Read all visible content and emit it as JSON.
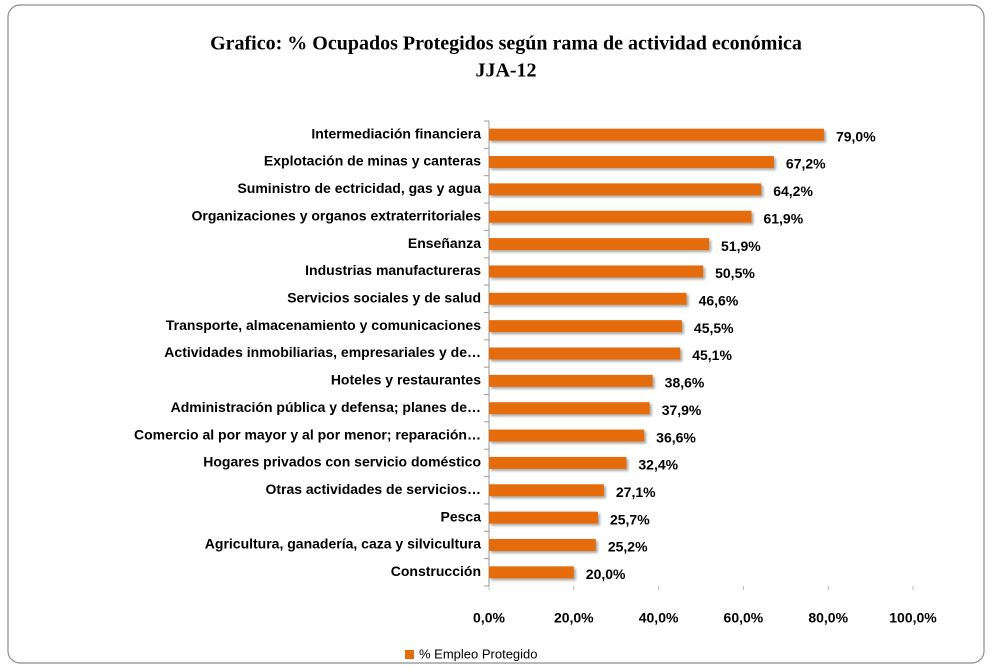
{
  "chart_data": {
    "type": "barh",
    "title": [
      "Grafico: % Ocupados Protegidos según rama de actividad económica",
      "JJA-12"
    ],
    "categories": [
      "Intermediación financiera",
      "Explotación de minas y canteras",
      "Suministro de ectricidad, gas y agua",
      "Organizaciones y organos extraterritoriales",
      "Enseñanza",
      "Industrias manufactureras",
      "Servicios sociales y de salud",
      "Transporte, almacenamiento y comunicaciones",
      "Actividades inmobiliarias, empresariales y de…",
      "Hoteles y restaurantes",
      "Administración pública y defensa; planes de…",
      "Comercio al por mayor y al por menor; reparación…",
      "Hogares privados con servicio doméstico",
      "Otras actividades de servicios…",
      "Pesca",
      "Agricultura, ganadería, caza y silvicultura",
      "Construcción"
    ],
    "series": [
      {
        "name": "% Empleo Protegido",
        "color": "#e46c0a",
        "values": [
          79.0,
          67.2,
          64.2,
          61.9,
          51.9,
          50.5,
          46.6,
          45.5,
          45.1,
          38.6,
          37.9,
          36.6,
          32.4,
          27.1,
          25.7,
          25.2,
          20.0
        ],
        "value_labels": [
          "79,0%",
          "67,2%",
          "64,2%",
          "61,9%",
          "51,9%",
          "50,5%",
          "46,6%",
          "45,5%",
          "45,1%",
          "38,6%",
          "37,9%",
          "36,6%",
          "32,4%",
          "27,1%",
          "25,7%",
          "25,2%",
          "20,0%"
        ]
      }
    ],
    "xlim": [
      0,
      100
    ],
    "xticks": [
      {
        "value": 0,
        "label": "0,0%"
      },
      {
        "value": 20,
        "label": "20,0%"
      },
      {
        "value": 40,
        "label": "40,0%"
      },
      {
        "value": 60,
        "label": "60,0%"
      },
      {
        "value": 80,
        "label": "80,0%"
      },
      {
        "value": 100,
        "label": "100,0%"
      }
    ],
    "legend": "bottom"
  }
}
